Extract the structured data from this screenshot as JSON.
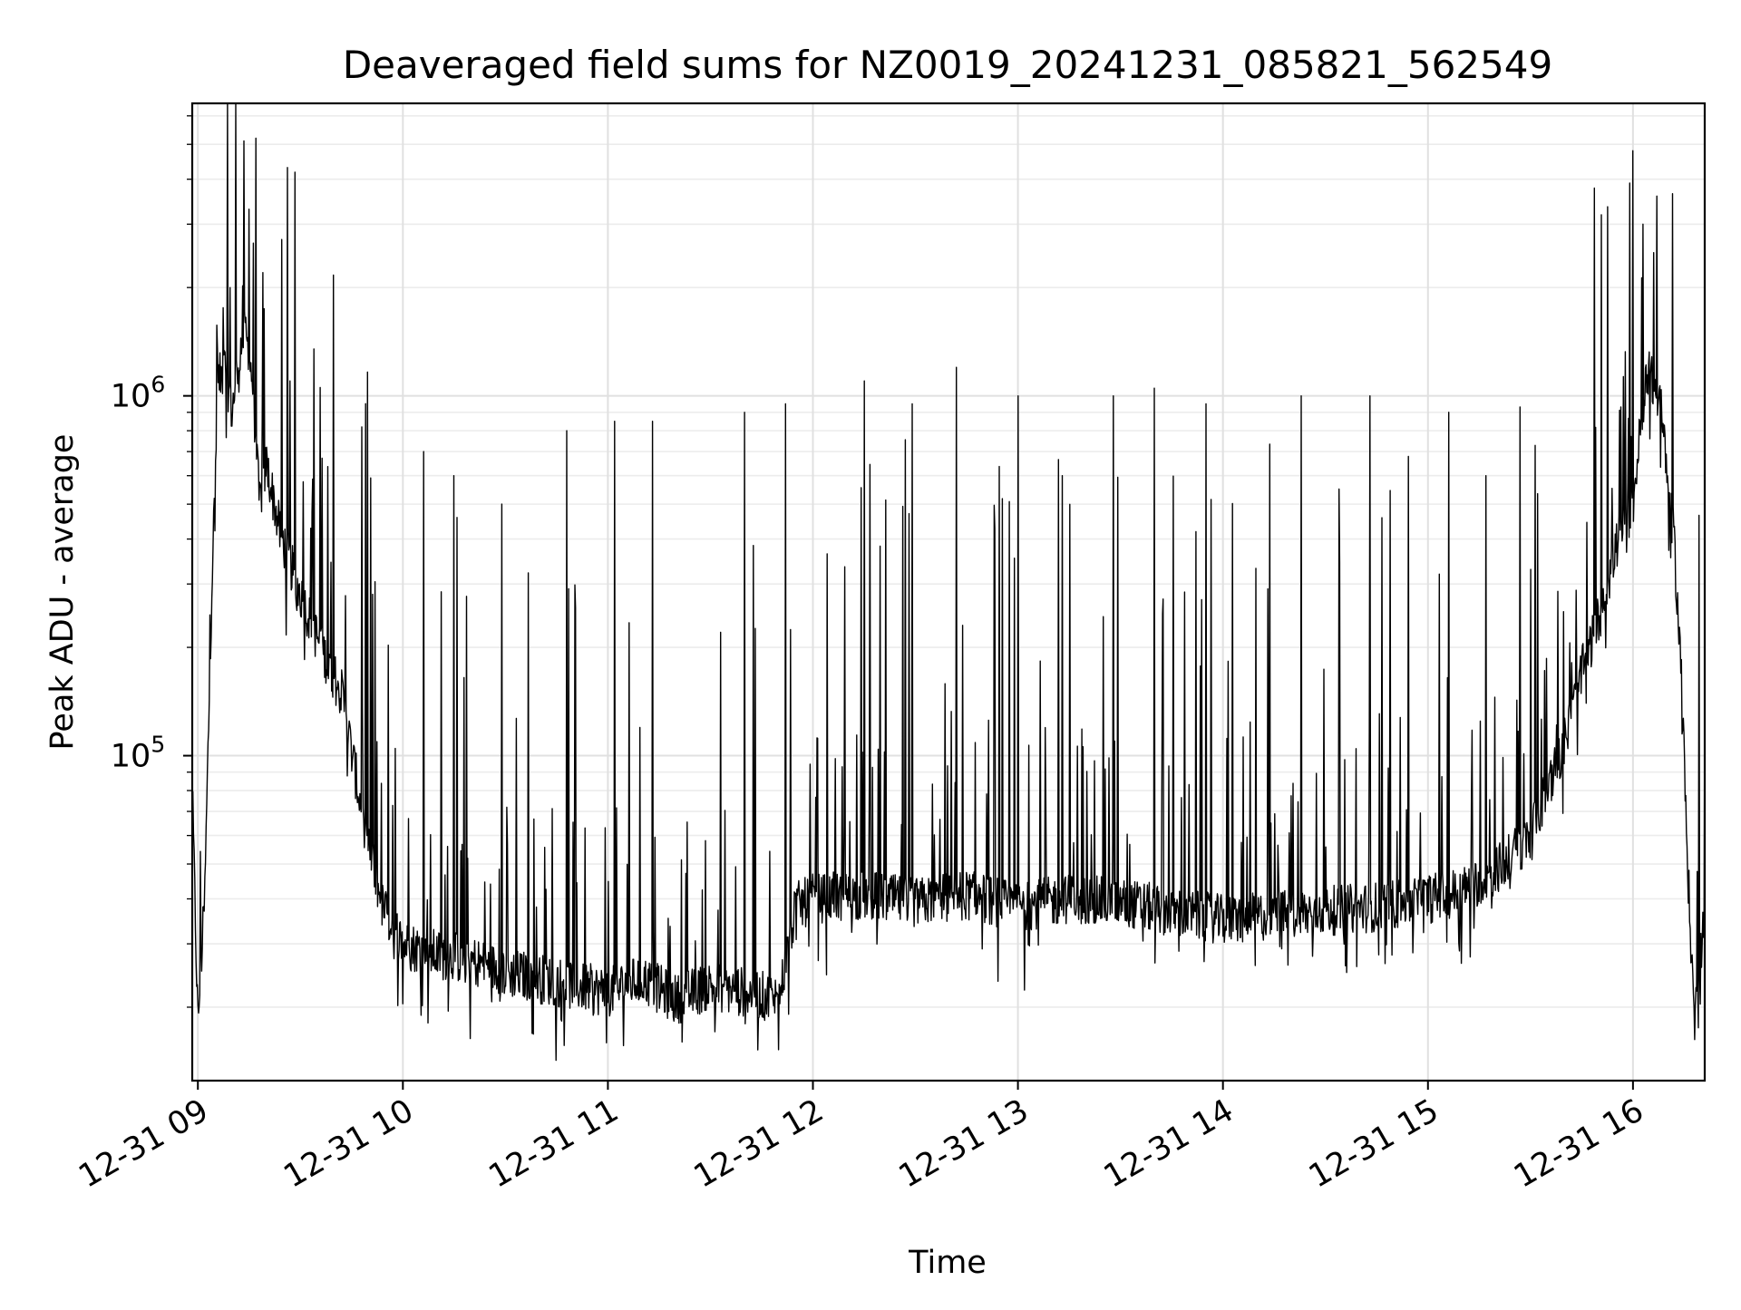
{
  "chart_data": {
    "type": "line",
    "title": "Deaveraged field sums for NZ0019_20241231_085821_562549",
    "xlabel": "Time",
    "ylabel": "Peak ADU - average",
    "yscale": "log",
    "ylim": [
      12500,
      6500000
    ],
    "xlim": [
      "2024-12-31T08:58:21",
      "2024-12-31T16:21:00"
    ],
    "grid": true,
    "legend": "none",
    "x_ticks": [
      {
        "value": "2024-12-31T09:00:00",
        "label": "12-31 09"
      },
      {
        "value": "2024-12-31T10:00:00",
        "label": "12-31 10"
      },
      {
        "value": "2024-12-31T11:00:00",
        "label": "12-31 11"
      },
      {
        "value": "2024-12-31T12:00:00",
        "label": "12-31 12"
      },
      {
        "value": "2024-12-31T13:00:00",
        "label": "12-31 13"
      },
      {
        "value": "2024-12-31T14:00:00",
        "label": "12-31 14"
      },
      {
        "value": "2024-12-31T15:00:00",
        "label": "12-31 15"
      },
      {
        "value": "2024-12-31T16:00:00",
        "label": "12-31 16"
      }
    ],
    "y_ticks": [
      {
        "value": 100000,
        "base": "10",
        "exp": "5"
      },
      {
        "value": 1000000,
        "base": "10",
        "exp": "6"
      }
    ],
    "series": [
      {
        "color": "#000000",
        "x": [
          "2024-12-31T08:58:21",
          "2024-12-31T09:00:00",
          "2024-12-31T09:02:00",
          "2024-12-31T09:04:00",
          "2024-12-31T09:06:00",
          "2024-12-31T09:08:00",
          "2024-12-31T09:10:00",
          "2024-12-31T09:12:00",
          "2024-12-31T09:14:00",
          "2024-12-31T09:16:00",
          "2024-12-31T09:18:00",
          "2024-12-31T09:20:00",
          "2024-12-31T09:24:00",
          "2024-12-31T09:30:00",
          "2024-12-31T09:36:00",
          "2024-12-31T09:42:00",
          "2024-12-31T09:48:00",
          "2024-12-31T09:54:00",
          "2024-12-31T10:00:00",
          "2024-12-31T10:10:00",
          "2024-12-31T10:20:00",
          "2024-12-31T10:30:00",
          "2024-12-31T10:40:00",
          "2024-12-31T10:50:00",
          "2024-12-31T11:00:00",
          "2024-12-31T11:10:00",
          "2024-12-31T11:20:00",
          "2024-12-31T11:30:00",
          "2024-12-31T11:40:00",
          "2024-12-31T11:50:00",
          "2024-12-31T11:55:00",
          "2024-12-31T12:00:00",
          "2024-12-31T12:15:00",
          "2024-12-31T12:30:00",
          "2024-12-31T12:45:00",
          "2024-12-31T13:00:00",
          "2024-12-31T13:15:00",
          "2024-12-31T13:30:00",
          "2024-12-31T13:45:00",
          "2024-12-31T14:00:00",
          "2024-12-31T14:15:00",
          "2024-12-31T14:30:00",
          "2024-12-31T14:45:00",
          "2024-12-31T15:00:00",
          "2024-12-31T15:10:00",
          "2024-12-31T15:20:00",
          "2024-12-31T15:30:00",
          "2024-12-31T15:40:00",
          "2024-12-31T15:45:00",
          "2024-12-31T15:50:00",
          "2024-12-31T15:55:00",
          "2024-12-31T16:00:00",
          "2024-12-31T16:04:00",
          "2024-12-31T16:08:00",
          "2024-12-31T16:10:00",
          "2024-12-31T16:12:00",
          "2024-12-31T16:14:00",
          "2024-12-31T16:16:00",
          "2024-12-31T16:18:00",
          "2024-12-31T16:21:00"
        ],
        "y": [
          80000,
          18000,
          40000,
          280000,
          1100000,
          1200000,
          900000,
          1300000,
          1500000,
          1100000,
          500000,
          650000,
          420000,
          280000,
          200000,
          150000,
          70000,
          38000,
          30000,
          28000,
          27000,
          25000,
          24000,
          23000,
          22000,
          24000,
          21000,
          23000,
          22000,
          21000,
          38000,
          40000,
          41000,
          39000,
          41000,
          38000,
          40000,
          39000,
          37000,
          35000,
          36000,
          37000,
          38000,
          40000,
          42000,
          48000,
          60000,
          110000,
          170000,
          240000,
          380000,
          500000,
          1200000,
          950000,
          620000,
          400000,
          180000,
          50000,
          18000,
          38000
        ],
        "spikes": [
          {
            "x": "2024-12-31T09:09:30",
            "y": 2000000
          },
          {
            "x": "2024-12-31T09:15:00",
            "y": 3300000
          },
          {
            "x": "2024-12-31T09:17:00",
            "y": 5200000
          },
          {
            "x": "2024-12-31T09:19:00",
            "y": 2200000
          },
          {
            "x": "2024-12-31T09:27:00",
            "y": 1100000
          },
          {
            "x": "2024-12-31T09:34:00",
            "y": 1350000
          },
          {
            "x": "2024-12-31T09:48:00",
            "y": 820000
          },
          {
            "x": "2024-12-31T10:06:00",
            "y": 700000
          },
          {
            "x": "2024-12-31T10:15:00",
            "y": 600000
          },
          {
            "x": "2024-12-31T10:29:00",
            "y": 500000
          },
          {
            "x": "2024-12-31T10:48:00",
            "y": 800000
          },
          {
            "x": "2024-12-31T11:02:00",
            "y": 850000
          },
          {
            "x": "2024-12-31T11:13:00",
            "y": 850000
          },
          {
            "x": "2024-12-31T11:40:00",
            "y": 900000
          },
          {
            "x": "2024-12-31T11:52:00",
            "y": 950000
          },
          {
            "x": "2024-12-31T12:15:00",
            "y": 1100000
          },
          {
            "x": "2024-12-31T12:29:00",
            "y": 950000
          },
          {
            "x": "2024-12-31T12:42:00",
            "y": 1200000
          },
          {
            "x": "2024-12-31T13:00:00",
            "y": 1000000
          },
          {
            "x": "2024-12-31T13:13:00",
            "y": 600000
          },
          {
            "x": "2024-12-31T13:28:00",
            "y": 1000000
          },
          {
            "x": "2024-12-31T13:40:00",
            "y": 1050000
          },
          {
            "x": "2024-12-31T13:55:00",
            "y": 950000
          },
          {
            "x": "2024-12-31T14:23:00",
            "y": 1000000
          },
          {
            "x": "2024-12-31T14:43:00",
            "y": 1000000
          },
          {
            "x": "2024-12-31T15:06:00",
            "y": 900000
          },
          {
            "x": "2024-12-31T15:17:00",
            "y": 600000
          },
          {
            "x": "2024-12-31T16:00:00",
            "y": 4800000
          },
          {
            "x": "2024-12-31T16:03:00",
            "y": 3000000
          },
          {
            "x": "2024-12-31T16:06:00",
            "y": 2500000
          }
        ]
      }
    ]
  }
}
